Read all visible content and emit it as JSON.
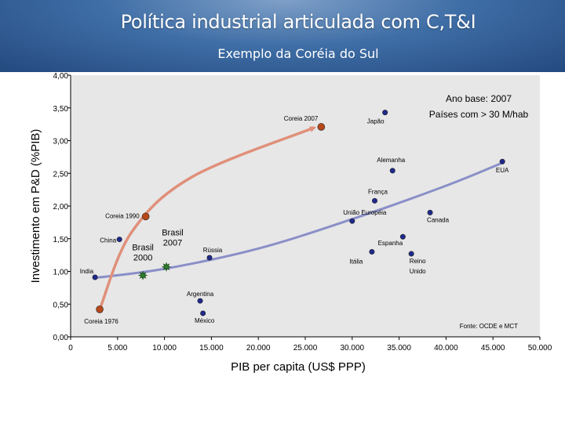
{
  "header": {
    "title": "Política industrial articulada com C,T&I",
    "subtitle": "Exemplo da Coréia do Sul"
  },
  "colors": {
    "header_blue": "#3f6ea6",
    "plot_background": "#e7e7e7",
    "country_point": "#1f2a8c",
    "korea_point": "#b8481a",
    "brazil_point": "#2e7d2e",
    "korea_arrow": "#e0907a",
    "trend_curve": "#8a8fc8"
  },
  "chart_data": {
    "type": "scatter",
    "title": "",
    "xlabel": "PIB per capita (US$ PPP)",
    "ylabel": "Investimento em P&D (%PIB)",
    "xlim": [
      0,
      50000
    ],
    "ylim": [
      0,
      4
    ],
    "xticks": [
      0,
      5000,
      10000,
      15000,
      20000,
      25000,
      30000,
      35000,
      40000,
      45000,
      50000
    ],
    "xtick_labels": [
      "0",
      "5.000",
      "10.000",
      "15.000",
      "20.000",
      "25.000",
      "30.000",
      "35.000",
      "40.000",
      "45.000",
      "50.000"
    ],
    "yticks": [
      0,
      0.5,
      1,
      1.5,
      2,
      2.5,
      3,
      3.5,
      4
    ],
    "ytick_labels": [
      "0,00",
      "0,50",
      "1,00",
      "1,50",
      "2,00",
      "2,50",
      "3,00",
      "3,50",
      "4,00"
    ],
    "grid": false,
    "annotations": [
      "Ano base: 2007",
      "Países com > 30 M/hab"
    ],
    "source": "Fonte: OCDE e MCT",
    "series": [
      {
        "group": "countries",
        "points": [
          {
            "label": "Japão",
            "x": 33500,
            "y": 3.43
          },
          {
            "label": "Alemanha",
            "x": 34300,
            "y": 2.54
          },
          {
            "label": "EUA",
            "x": 46000,
            "y": 2.68
          },
          {
            "label": "França",
            "x": 32400,
            "y": 2.08
          },
          {
            "label": "União Européia",
            "x": 30000,
            "y": 1.77
          },
          {
            "label": "Canada",
            "x": 38300,
            "y": 1.9
          },
          {
            "label": "Espanha",
            "x": 35400,
            "y": 1.53
          },
          {
            "label": "Reino Unido",
            "x": 36300,
            "y": 1.27
          },
          {
            "label": "Itália",
            "x": 32100,
            "y": 1.3
          },
          {
            "label": "China",
            "x": 5200,
            "y": 1.49
          },
          {
            "label": "Rússia",
            "x": 14800,
            "y": 1.21
          },
          {
            "label": "India",
            "x": 2600,
            "y": 0.91
          },
          {
            "label": "Argentina",
            "x": 13800,
            "y": 0.55
          },
          {
            "label": "México",
            "x": 14100,
            "y": 0.36
          }
        ]
      },
      {
        "group": "korea",
        "points": [
          {
            "label": "Coreia 1976",
            "x": 3100,
            "y": 0.42
          },
          {
            "label": "Coreia 1990",
            "x": 8000,
            "y": 1.84
          },
          {
            "label": "Coreia 2007",
            "x": 26700,
            "y": 3.21
          }
        ]
      },
      {
        "group": "brazil",
        "points": [
          {
            "label": "Brasil 2000",
            "x": 7700,
            "y": 0.94
          },
          {
            "label": "Brasil 2007",
            "x": 10200,
            "y": 1.07
          }
        ]
      }
    ],
    "trend_curve": [
      {
        "x": 2500,
        "y": 0.9
      },
      {
        "x": 10000,
        "y": 1.04
      },
      {
        "x": 20000,
        "y": 1.35
      },
      {
        "x": 30000,
        "y": 1.8
      },
      {
        "x": 40000,
        "y": 2.31
      },
      {
        "x": 46000,
        "y": 2.66
      }
    ],
    "korea_arrow": [
      {
        "x": 3100,
        "y": 0.42
      },
      {
        "x": 6500,
        "y": 1.6
      },
      {
        "x": 13000,
        "y": 2.45
      },
      {
        "x": 26000,
        "y": 3.2
      }
    ]
  }
}
